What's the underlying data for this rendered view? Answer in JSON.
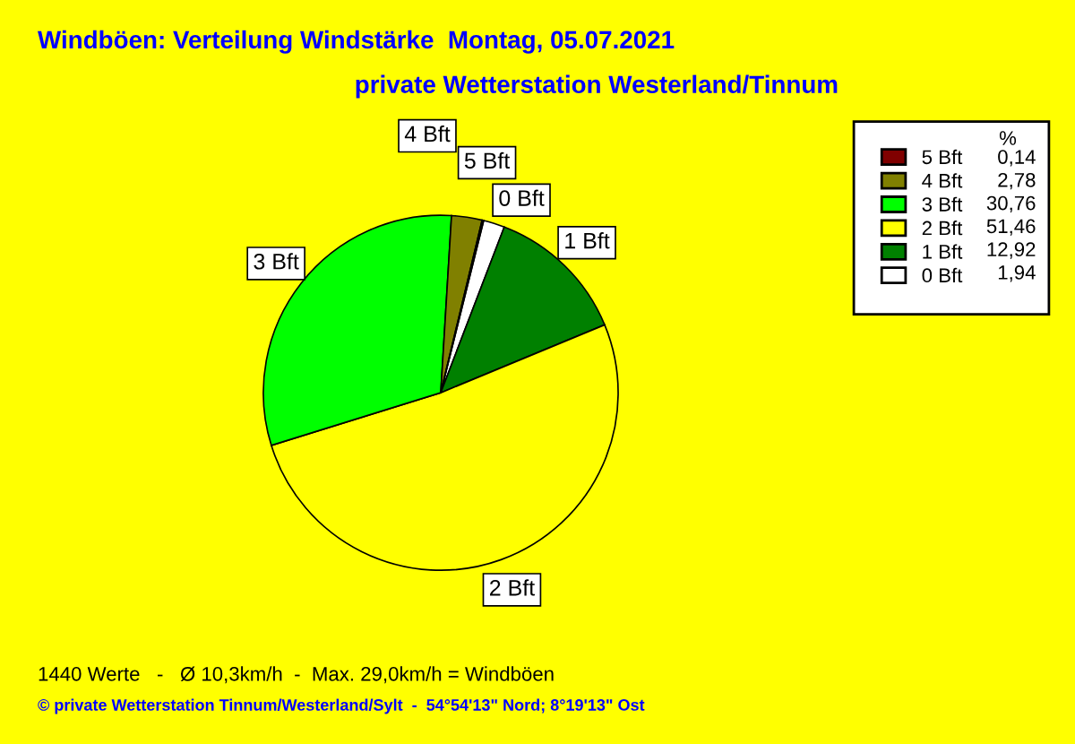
{
  "chart_data": {
    "type": "pie",
    "title": "Windböen: Verteilung Windstärke  Montag, 05.07.2021",
    "subtitle": "private Wetterstation Westerland/Tinnum",
    "categories": [
      "0 Bft",
      "1 Bft",
      "2 Bft",
      "3 Bft",
      "4 Bft",
      "5 Bft"
    ],
    "values": [
      1.94,
      12.92,
      51.46,
      30.76,
      2.78,
      0.14
    ],
    "value_labels": [
      "1,94",
      "12,92",
      "51,46",
      "30,76",
      "2,78",
      "0,14"
    ],
    "colors": [
      "#ffffff",
      "#008000",
      "#ffff00",
      "#00ff00",
      "#808000",
      "#800000"
    ],
    "legend": "right",
    "legend_title": "%",
    "annotations": [
      "1440 Werte   -   Ø 10,3km/h  -  Max. 29,0km/h = Windböen",
      "© private Wetterstation Tinnum/Westerland/Sylt  -  54°54'13\" Nord; 8°19'13\" Ost"
    ]
  }
}
